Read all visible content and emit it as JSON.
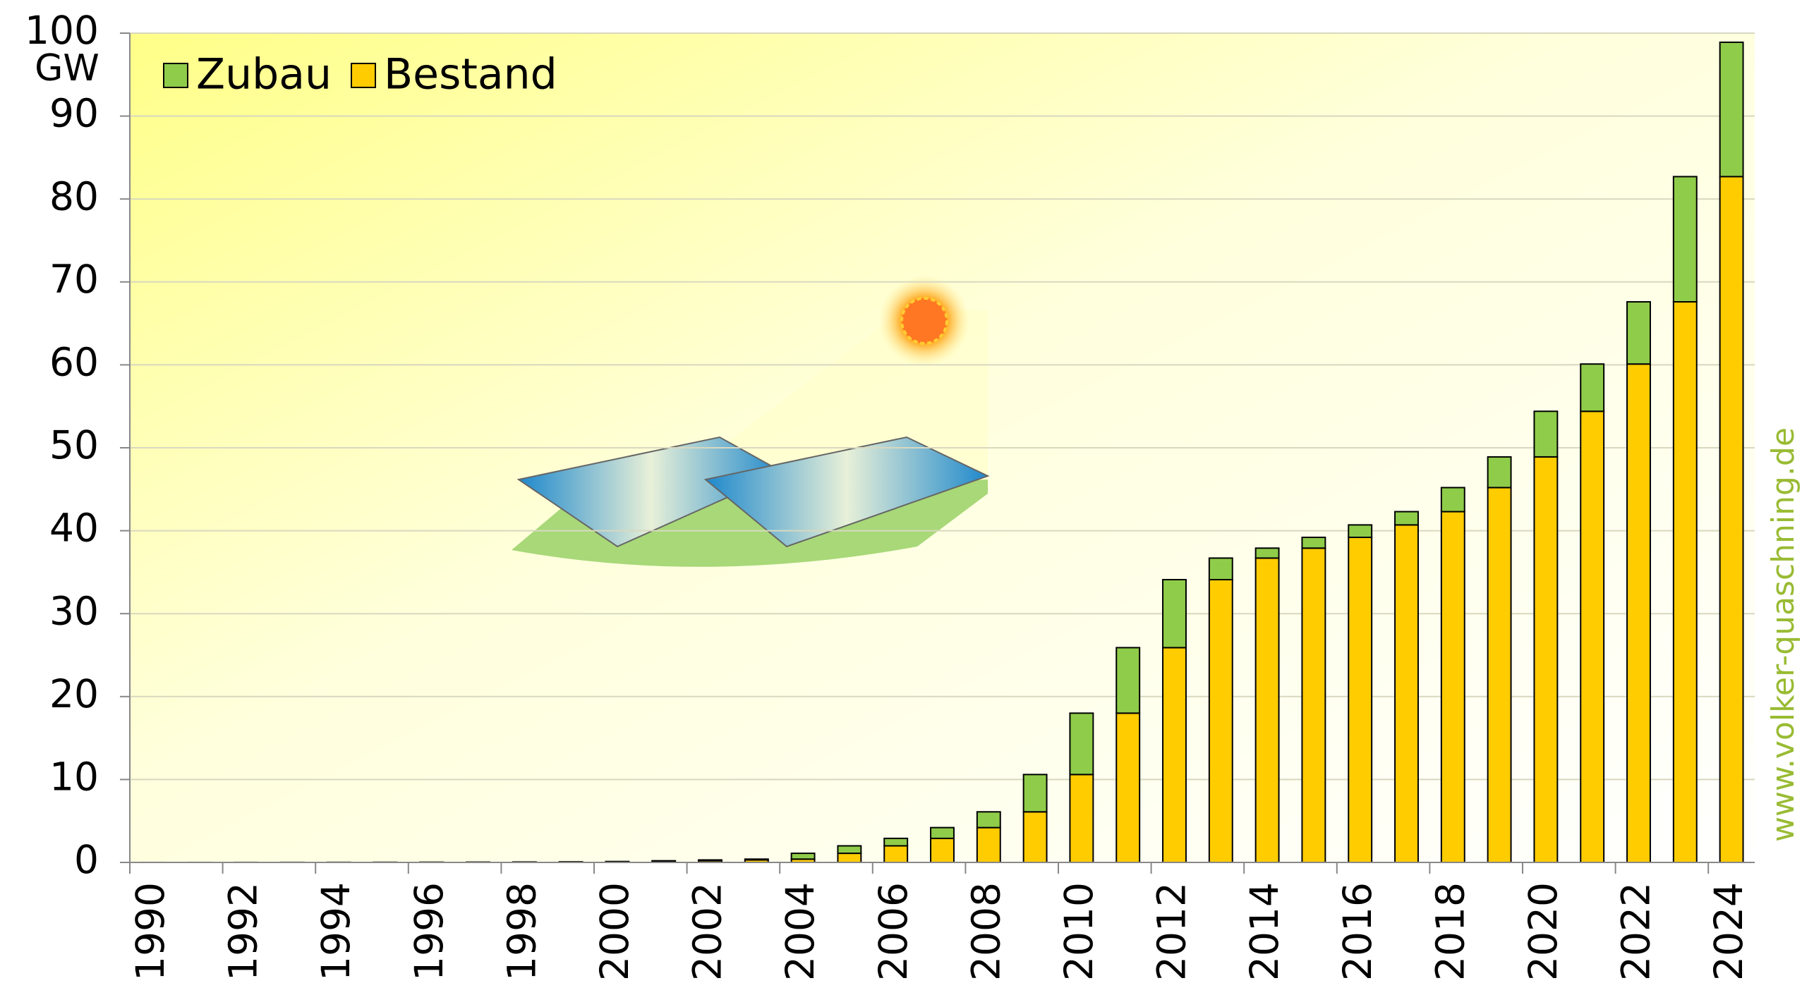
{
  "chart_data": {
    "type": "stacked_bar",
    "y_label": "GW",
    "watermark": "www.volker-quaschning.de",
    "categories": [
      "1990",
      null,
      "1992",
      null,
      "1994",
      null,
      "1996",
      null,
      "1998",
      null,
      "2000",
      null,
      "2002",
      null,
      "2004",
      null,
      "2006",
      null,
      "2008",
      null,
      "2010",
      null,
      "2012",
      null,
      "2014",
      null,
      "2016",
      null,
      "2018",
      null,
      "2020",
      null,
      "2022",
      null,
      "2024"
    ],
    "series": [
      {
        "name": "Bestand",
        "color": "#ffcc00",
        "values": [
          0.001,
          0.002,
          0.003,
          0.006,
          0.009,
          0.012,
          0.018,
          0.028,
          0.042,
          0.054,
          0.07,
          0.11,
          0.2,
          0.3,
          0.4,
          1.1,
          2.0,
          2.9,
          4.2,
          6.1,
          10.6,
          18.0,
          25.9,
          34.1,
          36.7,
          37.9,
          39.2,
          40.7,
          42.3,
          45.2,
          48.9,
          54.4,
          60.1,
          67.6,
          82.7
        ]
      },
      {
        "name": "Zubau",
        "color": "#8fcc4a",
        "values": [
          0.001,
          0.001,
          0.003,
          0.003,
          0.003,
          0.006,
          0.01,
          0.014,
          0.012,
          0.016,
          0.04,
          0.09,
          0.1,
          0.1,
          0.7,
          0.9,
          0.9,
          1.3,
          1.9,
          4.5,
          7.4,
          7.9,
          8.2,
          2.6,
          1.2,
          1.3,
          1.5,
          1.6,
          2.9,
          3.7,
          5.5,
          5.7,
          7.5,
          15.1,
          16.2
        ]
      }
    ],
    "ylim": [
      0,
      100
    ],
    "yticks": [
      0,
      10,
      20,
      30,
      40,
      50,
      60,
      70,
      80,
      90,
      100
    ],
    "grid": true,
    "legend": "top-left"
  }
}
